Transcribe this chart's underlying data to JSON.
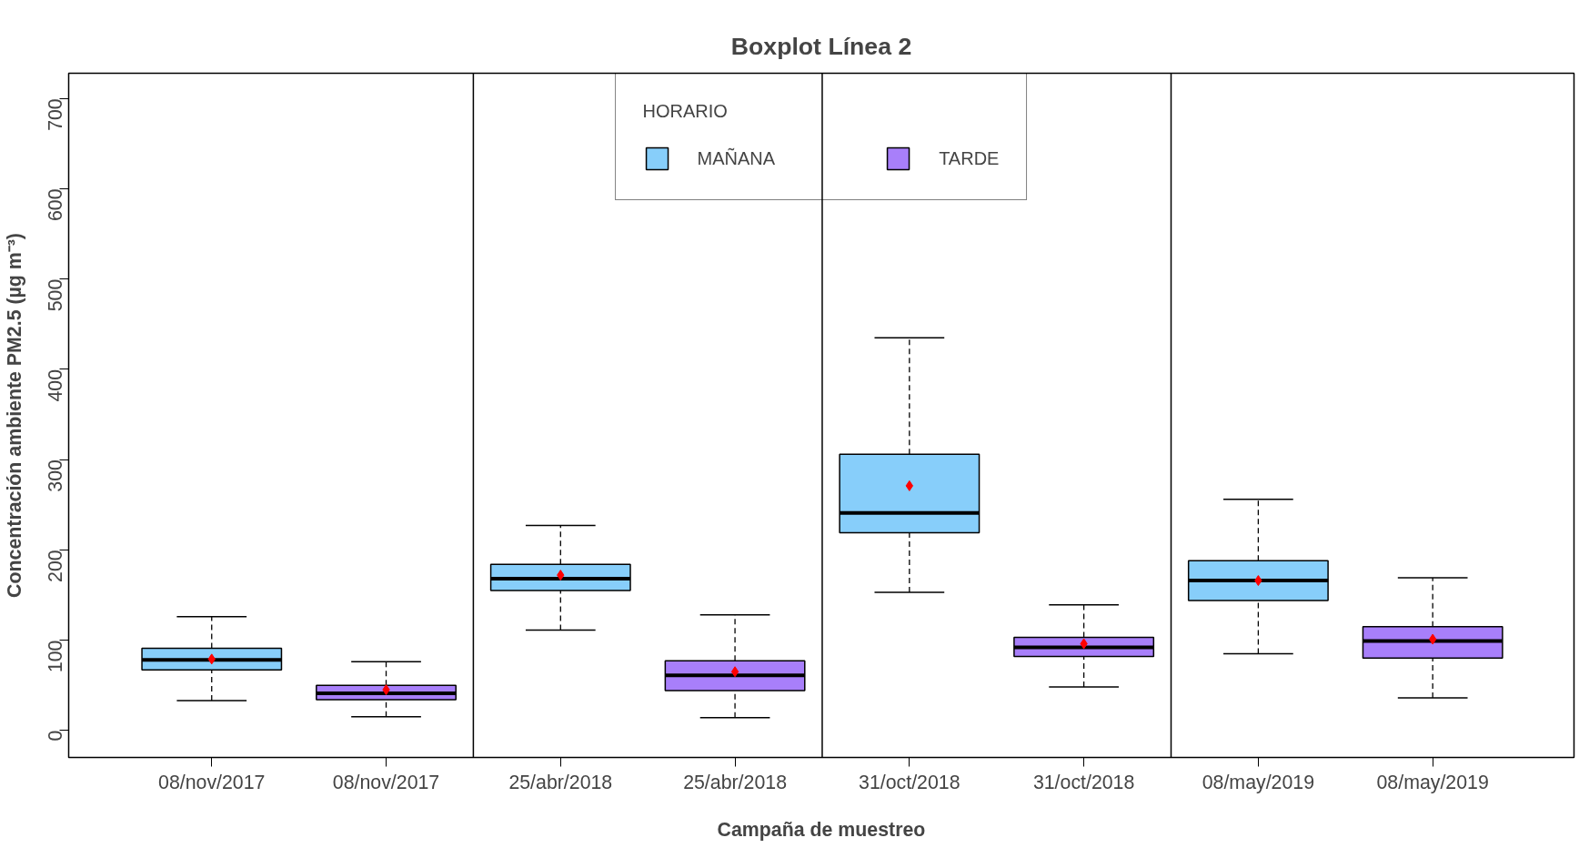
{
  "chart_data": {
    "type": "box",
    "title": "Boxplot Línea 2",
    "xlabel": "Campaña de muestreo",
    "ylabel": "Concentración ambiente PM2.5 (µg m⁻³)",
    "legend_title": "HORARIO",
    "categories": [
      "08/nov/2017",
      "08/nov/2017",
      "25/abr/2018",
      "25/abr/2018",
      "31/oct/2018",
      "31/oct/2018",
      "08/may/2019",
      "08/may/2019"
    ],
    "series": [
      {
        "name": "MAÑANA",
        "color": "#87cefa",
        "boxes": [
          {
            "low": 33,
            "q1": 67,
            "median": 78,
            "q3": 91,
            "high": 126,
            "mean": 79
          },
          null,
          {
            "low": 111,
            "q1": 155,
            "median": 168,
            "q3": 184,
            "high": 227,
            "mean": 172
          },
          null,
          {
            "low": 153,
            "q1": 219,
            "median": 241,
            "q3": 306,
            "high": 435,
            "mean": 271
          },
          null,
          {
            "low": 85,
            "q1": 144,
            "median": 166,
            "q3": 188,
            "high": 256,
            "mean": 166
          },
          null
        ]
      },
      {
        "name": "TARDE",
        "color": "#a87ffa",
        "boxes": [
          null,
          {
            "low": 15,
            "q1": 34,
            "median": 41,
            "q3": 50,
            "high": 76,
            "mean": 45
          },
          null,
          {
            "low": 14,
            "q1": 44,
            "median": 61,
            "q3": 77,
            "high": 128,
            "mean": 65
          },
          null,
          {
            "low": 48,
            "q1": 82,
            "median": 92,
            "q3": 103,
            "high": 139,
            "mean": 96
          },
          null,
          {
            "low": 36,
            "q1": 80,
            "median": 99,
            "q3": 115,
            "high": 169,
            "mean": 101
          }
        ]
      }
    ],
    "ylim": [
      -30,
      728
    ],
    "yticks": [
      0,
      100,
      200,
      300,
      400,
      500,
      600,
      700
    ],
    "grid": false,
    "legend": "top",
    "marker": "diamond"
  }
}
